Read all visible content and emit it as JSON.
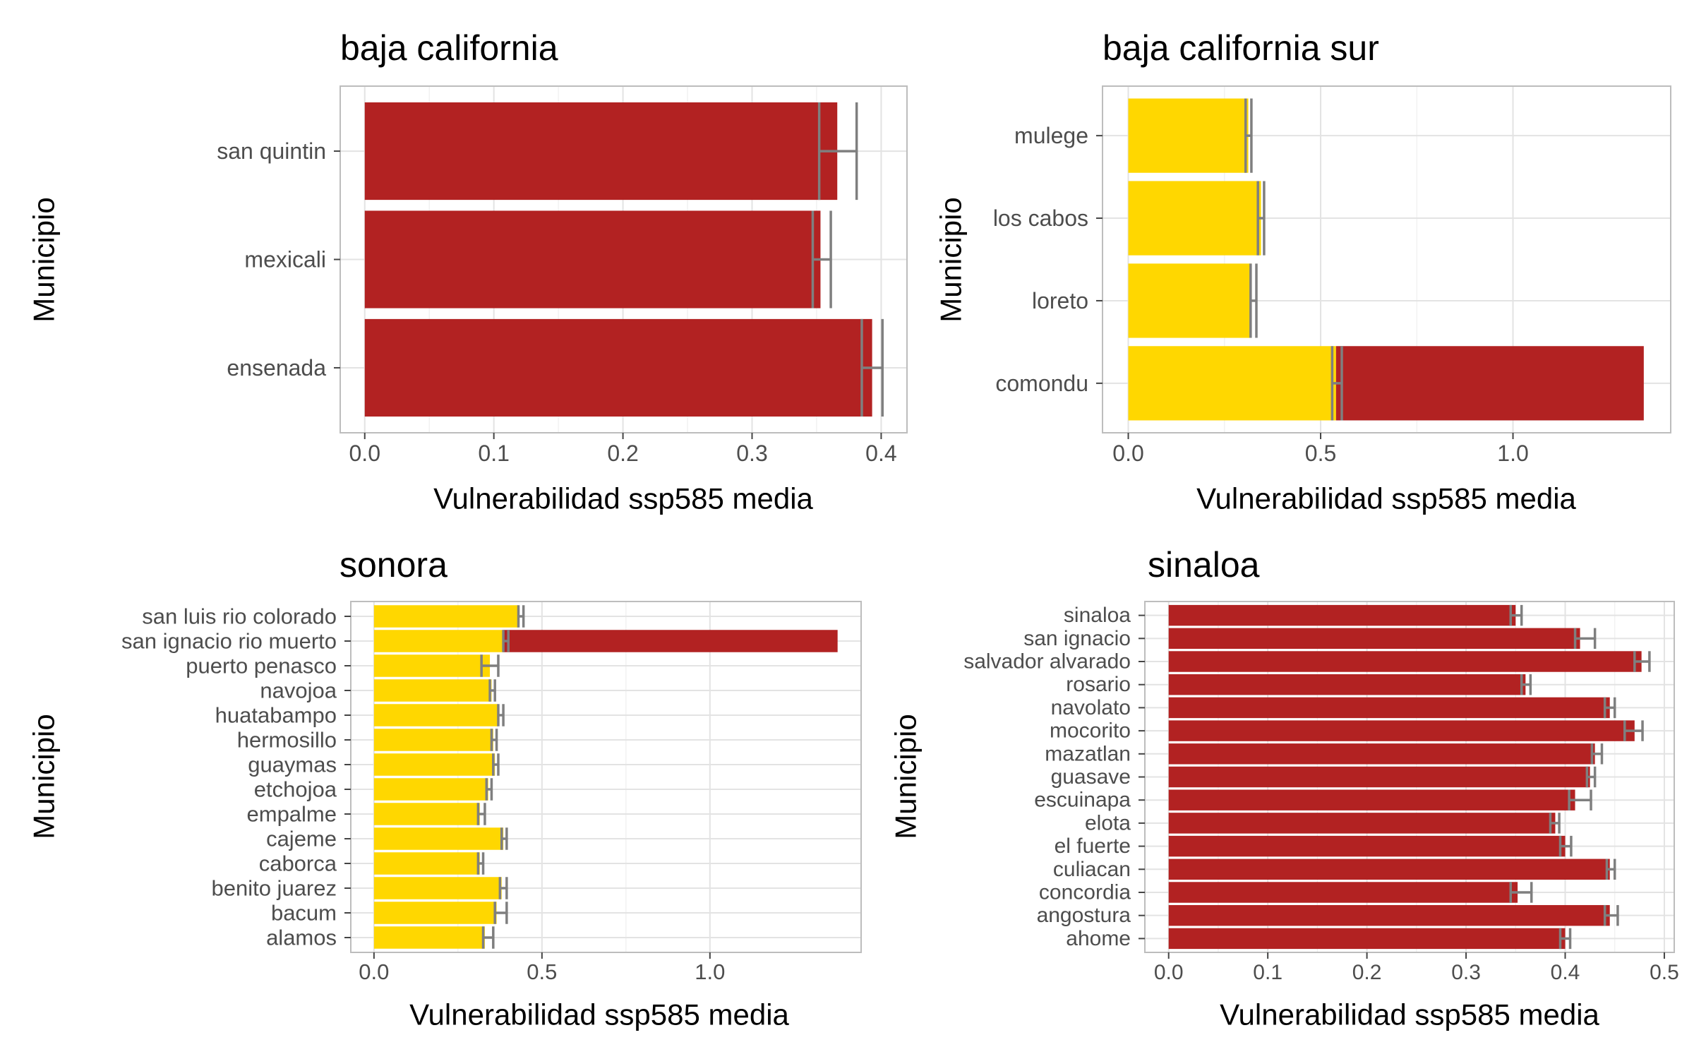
{
  "colors": {
    "yellow": "#FFD700",
    "red": "#B22222",
    "error": "#7f7f7f",
    "grid": "#e3e3e3",
    "border": "#bdbdbd"
  },
  "chart_data": [
    {
      "type": "bar",
      "orientation": "horizontal",
      "stacked": true,
      "title": "baja california",
      "xlabel": "Vulnerabilidad ssp585 media",
      "ylabel": "Municipio",
      "xlim": [
        -0.019,
        0.42
      ],
      "xticks": [
        0.0,
        0.1,
        0.2,
        0.3,
        0.4
      ],
      "xtick_labels": [
        "0.0",
        "0.1",
        "0.2",
        "0.3",
        "0.4"
      ],
      "grid": true,
      "categories": [
        "ensenada",
        "mexicali",
        "san quintin"
      ],
      "series": [
        {
          "color": "red",
          "values": [
            0.393,
            0.353,
            0.366
          ]
        }
      ],
      "error_bars": [
        {
          "low": 0.385,
          "high": 0.401
        },
        {
          "low": 0.347,
          "high": 0.361
        },
        {
          "low": 0.352,
          "high": 0.381
        }
      ]
    },
    {
      "type": "bar",
      "orientation": "horizontal",
      "stacked": true,
      "title": "baja california sur",
      "xlabel": "Vulnerabilidad ssp585 media",
      "ylabel": "Municipio",
      "xlim": [
        -0.067,
        1.41
      ],
      "xticks": [
        0.0,
        0.5,
        1.0
      ],
      "xtick_labels": [
        "0.0",
        "0.5",
        "1.0"
      ],
      "grid": true,
      "categories": [
        "comondu",
        "loreto",
        "los cabos",
        "mulege"
      ],
      "series": [
        {
          "color": "yellow",
          "values": [
            0.54,
            0.32,
            0.345,
            0.312
          ]
        },
        {
          "color": "red",
          "values": [
            0.8,
            0,
            0,
            0
          ]
        }
      ],
      "error_bars": [
        {
          "low": 0.53,
          "high": 0.555
        },
        {
          "low": 0.318,
          "high": 0.333
        },
        {
          "low": 0.337,
          "high": 0.353
        },
        {
          "low": 0.305,
          "high": 0.32
        }
      ]
    },
    {
      "type": "bar",
      "orientation": "horizontal",
      "stacked": true,
      "title": "sonora",
      "xlabel": "Vulnerabilidad ssp585 media",
      "ylabel": "Municipio",
      "xlim": [
        -0.069,
        1.45
      ],
      "xticks": [
        0.0,
        0.5,
        1.0
      ],
      "xtick_labels": [
        "0.0",
        "0.5",
        "1.0"
      ],
      "grid": true,
      "categories": [
        "alamos",
        "bacum",
        "benito juarez",
        "caborca",
        "cajeme",
        "empalme",
        "etchojoa",
        "guaymas",
        "hermosillo",
        "huatabampo",
        "navojoa",
        "puerto penasco",
        "san ignacio rio muerto",
        "san luis rio colorado"
      ],
      "series": [
        {
          "color": "yellow",
          "values": [
            0.33,
            0.365,
            0.38,
            0.315,
            0.385,
            0.315,
            0.34,
            0.36,
            0.355,
            0.37,
            0.35,
            0.345,
            0.385,
            0.43
          ]
        },
        {
          "color": "red",
          "values": [
            0,
            0,
            0,
            0,
            0,
            0,
            0,
            0,
            0,
            0,
            0,
            0,
            0.995,
            0
          ]
        }
      ],
      "error_bars": [
        {
          "low": 0.325,
          "high": 0.355
        },
        {
          "low": 0.36,
          "high": 0.395
        },
        {
          "low": 0.375,
          "high": 0.395
        },
        {
          "low": 0.31,
          "high": 0.325
        },
        {
          "low": 0.38,
          "high": 0.395
        },
        {
          "low": 0.31,
          "high": 0.33
        },
        {
          "low": 0.335,
          "high": 0.35
        },
        {
          "low": 0.355,
          "high": 0.37
        },
        {
          "low": 0.35,
          "high": 0.365
        },
        {
          "low": 0.37,
          "high": 0.385
        },
        {
          "low": 0.345,
          "high": 0.36
        },
        {
          "low": 0.32,
          "high": 0.37
        },
        {
          "low": 0.385,
          "high": 0.4
        },
        {
          "low": 0.43,
          "high": 0.445
        }
      ]
    },
    {
      "type": "bar",
      "orientation": "horizontal",
      "stacked": true,
      "title": "sinaloa",
      "xlabel": "Vulnerabilidad ssp585 media",
      "ylabel": "Municipio",
      "xlim": [
        -0.024,
        0.51
      ],
      "xticks": [
        0.0,
        0.1,
        0.2,
        0.3,
        0.4,
        0.5
      ],
      "xtick_labels": [
        "0.0",
        "0.1",
        "0.2",
        "0.3",
        "0.4",
        "0.5"
      ],
      "grid": true,
      "categories": [
        "ahome",
        "angostura",
        "concordia",
        "culiacan",
        "el fuerte",
        "elota",
        "escuinapa",
        "guasave",
        "mazatlan",
        "mocorito",
        "navolato",
        "rosario",
        "salvador alvarado",
        "san ignacio",
        "sinaloa"
      ],
      "series": [
        {
          "color": "red",
          "values": [
            0.4,
            0.445,
            0.352,
            0.445,
            0.4,
            0.39,
            0.41,
            0.425,
            0.43,
            0.47,
            0.445,
            0.36,
            0.477,
            0.415,
            0.35
          ]
        }
      ],
      "error_bars": [
        {
          "low": 0.395,
          "high": 0.405
        },
        {
          "low": 0.44,
          "high": 0.453
        },
        {
          "low": 0.345,
          "high": 0.366
        },
        {
          "low": 0.442,
          "high": 0.45
        },
        {
          "low": 0.395,
          "high": 0.406
        },
        {
          "low": 0.385,
          "high": 0.394
        },
        {
          "low": 0.404,
          "high": 0.426
        },
        {
          "low": 0.422,
          "high": 0.43
        },
        {
          "low": 0.427,
          "high": 0.437
        },
        {
          "low": 0.46,
          "high": 0.478
        },
        {
          "low": 0.44,
          "high": 0.45
        },
        {
          "low": 0.356,
          "high": 0.365
        },
        {
          "low": 0.47,
          "high": 0.485
        },
        {
          "low": 0.41,
          "high": 0.43
        },
        {
          "low": 0.345,
          "high": 0.356
        }
      ]
    }
  ]
}
